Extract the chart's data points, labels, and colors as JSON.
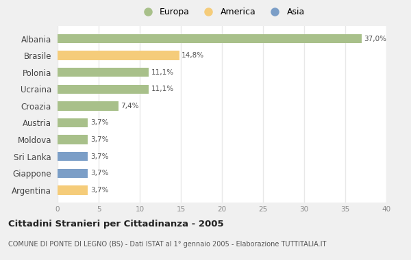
{
  "categories": [
    "Albania",
    "Brasile",
    "Polonia",
    "Ucraina",
    "Croazia",
    "Austria",
    "Moldova",
    "Sri Lanka",
    "Giappone",
    "Argentina"
  ],
  "values": [
    37.0,
    14.8,
    11.1,
    11.1,
    7.4,
    3.7,
    3.7,
    3.7,
    3.7,
    3.7
  ],
  "labels": [
    "37,0%",
    "14,8%",
    "11,1%",
    "11,1%",
    "7,4%",
    "3,7%",
    "3,7%",
    "3,7%",
    "3,7%",
    "3,7%"
  ],
  "colors": [
    "#a8c08a",
    "#f5cc7a",
    "#a8c08a",
    "#a8c08a",
    "#a8c08a",
    "#a8c08a",
    "#a8c08a",
    "#7b9ec7",
    "#7b9ec7",
    "#f5cc7a"
  ],
  "legend_labels": [
    "Europa",
    "America",
    "Asia"
  ],
  "legend_colors": [
    "#a8c08a",
    "#f5cc7a",
    "#7b9ec7"
  ],
  "xlim": [
    0,
    40
  ],
  "xticks": [
    0,
    5,
    10,
    15,
    20,
    25,
    30,
    35,
    40
  ],
  "title": "Cittadini Stranieri per Cittadinanza - 2005",
  "subtitle": "COMUNE DI PONTE DI LEGNO (BS) - Dati ISTAT al 1° gennaio 2005 - Elaborazione TUTTITALIA.IT",
  "fig_bg_color": "#f0f0f0",
  "ax_bg_color": "#ffffff",
  "grid_color": "#e8e8e8",
  "bar_height": 0.55
}
